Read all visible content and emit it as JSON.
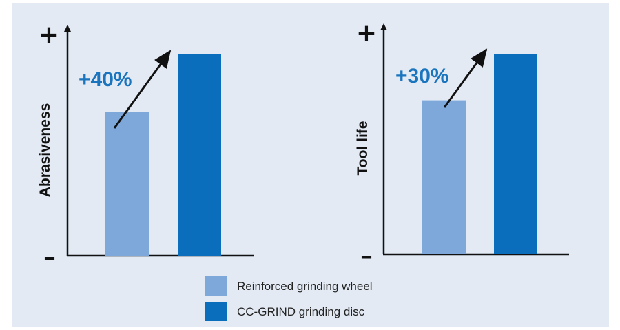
{
  "colors": {
    "background": "#e3eaf4",
    "series_light": "#7fa8da",
    "series_dark": "#0a6ebd",
    "axis": "#111111",
    "annotation": "#1a74be"
  },
  "legend": [
    {
      "label": "Reinforced grinding wheel",
      "color": "#7fa8da"
    },
    {
      "label": "CC-GRIND grinding disc",
      "color": "#0a6ebd"
    }
  ],
  "chart_data": [
    {
      "type": "bar",
      "ylabel": "Abrasiveness",
      "axis_top_label": "+",
      "axis_bottom_label": "–",
      "series": [
        {
          "name": "Reinforced grinding wheel",
          "values": [
            100
          ]
        },
        {
          "name": "CC-GRIND grinding disc",
          "values": [
            140
          ]
        }
      ],
      "annotation": "+40%",
      "ylim": [
        0,
        155
      ],
      "grid": false
    },
    {
      "type": "bar",
      "ylabel": "Tool life",
      "axis_top_label": "+",
      "axis_bottom_label": "–",
      "series": [
        {
          "name": "Reinforced grinding wheel",
          "values": [
            100
          ]
        },
        {
          "name": "CC-GRIND grinding disc",
          "values": [
            130
          ]
        }
      ],
      "annotation": "+30%",
      "ylim": [
        0,
        145
      ],
      "grid": false
    }
  ]
}
